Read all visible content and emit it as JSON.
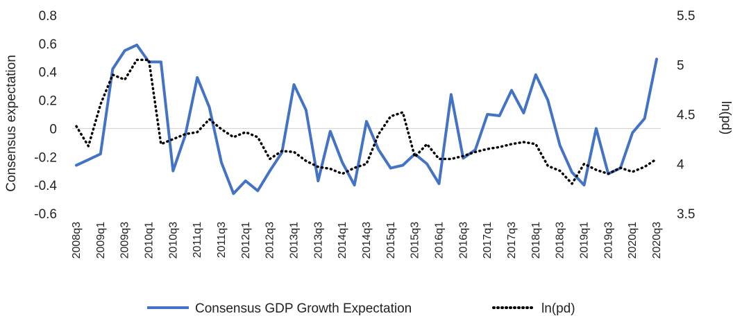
{
  "chart_data": {
    "type": "line",
    "title": "",
    "xlabel": "",
    "ylabel": "Consensus expectation",
    "y2label": "ln(pd)",
    "ylim": [
      -0.6,
      0.8
    ],
    "y2lim": [
      3.5,
      5.5
    ],
    "yticks": [
      "0.8",
      "0.6",
      "0.4",
      "0.2",
      "0",
      "-0.2",
      "-0.4",
      "-0.6"
    ],
    "y2ticks": [
      "5.5",
      "5",
      "4.5",
      "4",
      "3.5"
    ],
    "x": [
      "2008q3",
      "2008q4",
      "2009q1",
      "2009q2",
      "2009q3",
      "2009q4",
      "2010q1",
      "2010q2",
      "2010q3",
      "2010q4",
      "2011q1",
      "2011q2",
      "2011q3",
      "2011q4",
      "2012q1",
      "2012q2",
      "2012q3",
      "2012q4",
      "2013q1",
      "2013q2",
      "2013q3",
      "2013q4",
      "2014q1",
      "2014q2",
      "2014q3",
      "2014q4",
      "2015q1",
      "2015q2",
      "2015q3",
      "2015q4",
      "2016q1",
      "2016q2",
      "2016q3",
      "2016q4",
      "2017q1",
      "2017q2",
      "2017q3",
      "2017q4",
      "2018q1",
      "2018q2",
      "2018q3",
      "2018q4",
      "2019q1",
      "2019q2",
      "2019q3",
      "2019q4",
      "2020q1",
      "2020q2",
      "2020q3"
    ],
    "xtick_labels": [
      "2008q3",
      "2009q1",
      "2009q3",
      "2010q1",
      "2010q3",
      "2011q1",
      "2011q3",
      "2012q1",
      "2012q3",
      "2013q1",
      "2013q3",
      "2014q1",
      "2014q3",
      "2015q1",
      "2015q3",
      "2016q1",
      "2016q3",
      "2017q1",
      "2017q3",
      "2018q1",
      "2018q3",
      "2019q1",
      "2019q3",
      "2020q1",
      "2020q3"
    ],
    "grid": false,
    "legend": "bottom",
    "series": [
      {
        "name": "Consensus GDP Growth Expectation",
        "axis": "left",
        "color": "#4472C4",
        "style": "solid",
        "values": [
          -0.26,
          -0.22,
          -0.18,
          0.42,
          0.55,
          0.59,
          0.47,
          0.47,
          -0.3,
          -0.05,
          0.36,
          0.15,
          -0.24,
          -0.46,
          -0.37,
          -0.44,
          -0.3,
          -0.17,
          0.31,
          0.13,
          -0.37,
          -0.02,
          -0.24,
          -0.4,
          0.05,
          -0.15,
          -0.28,
          -0.26,
          -0.18,
          -0.25,
          -0.39,
          0.24,
          -0.21,
          -0.15,
          0.1,
          0.09,
          0.27,
          0.11,
          0.38,
          0.2,
          -0.12,
          -0.31,
          -0.4,
          0.0,
          -0.32,
          -0.28,
          -0.03,
          0.07,
          0.49
        ]
      },
      {
        "name": "ln(pd)",
        "axis": "right",
        "color": "#000000",
        "style": "dotted",
        "values": [
          4.38,
          4.18,
          4.6,
          4.9,
          4.85,
          5.05,
          5.05,
          4.2,
          4.25,
          4.3,
          4.32,
          4.45,
          4.35,
          4.27,
          4.32,
          4.27,
          4.05,
          4.13,
          4.12,
          4.03,
          3.97,
          3.95,
          3.9,
          3.96,
          4.0,
          4.3,
          4.48,
          4.52,
          4.07,
          4.2,
          4.05,
          4.05,
          4.08,
          4.12,
          4.15,
          4.17,
          4.2,
          4.22,
          4.2,
          3.98,
          3.93,
          3.8,
          4.0,
          3.94,
          3.9,
          3.96,
          3.92,
          3.97,
          4.05
        ]
      }
    ]
  }
}
